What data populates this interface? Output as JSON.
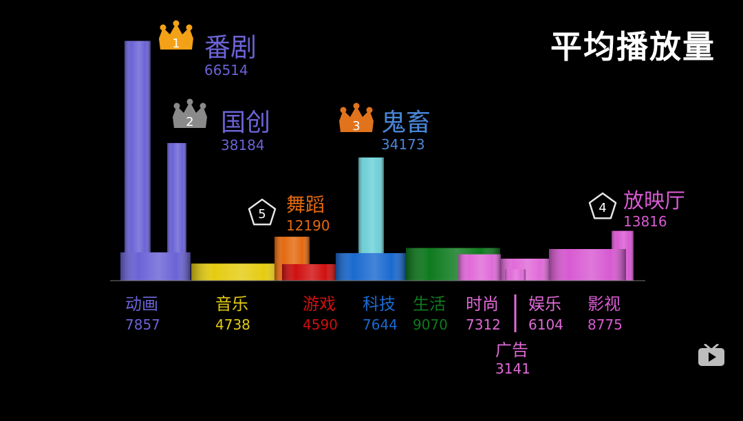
{
  "title": "平均播放量",
  "colors": {
    "anime": "#6b63d6",
    "music": "#e5cc12",
    "dance": "#e46a10",
    "game": "#d01010",
    "tech": "#1a6ad0",
    "kichiku": "#6ed0d8",
    "life": "#0e7a1e",
    "fashion": "#e06ad8",
    "ad": "#e06ad8",
    "ent": "#e06ad8",
    "film": "#d85ad2",
    "crown_gold": "#f3a117",
    "crown_silver": "#8a8a8a",
    "crown_bronze": "#e1731c",
    "badge_outline": "#e6e6e6",
    "axis": "#777777"
  },
  "chart_data": {
    "type": "bar",
    "title": "平均播放量",
    "categories": [
      "动画",
      "音乐",
      "游戏",
      "科技",
      "生活",
      "时尚",
      "广告",
      "娱乐",
      "影视"
    ],
    "values": [
      7857,
      4738,
      4590,
      7644,
      9070,
      7312,
      3141,
      6104,
      8775
    ],
    "subcategories": [
      {
        "name": "番剧",
        "parent": "动画",
        "value": 66514,
        "rank": 1
      },
      {
        "name": "国创",
        "parent": "动画",
        "value": 38184,
        "rank": 2
      },
      {
        "name": "鬼畜",
        "parent": "科技",
        "value": 34173,
        "rank": 3
      },
      {
        "name": "放映厅",
        "parent": "影视",
        "value": 13816,
        "rank": 4
      },
      {
        "name": "舞蹈",
        "parent": "音乐",
        "value": 12190,
        "rank": 5
      }
    ],
    "ylim": [
      0,
      70000
    ]
  }
}
